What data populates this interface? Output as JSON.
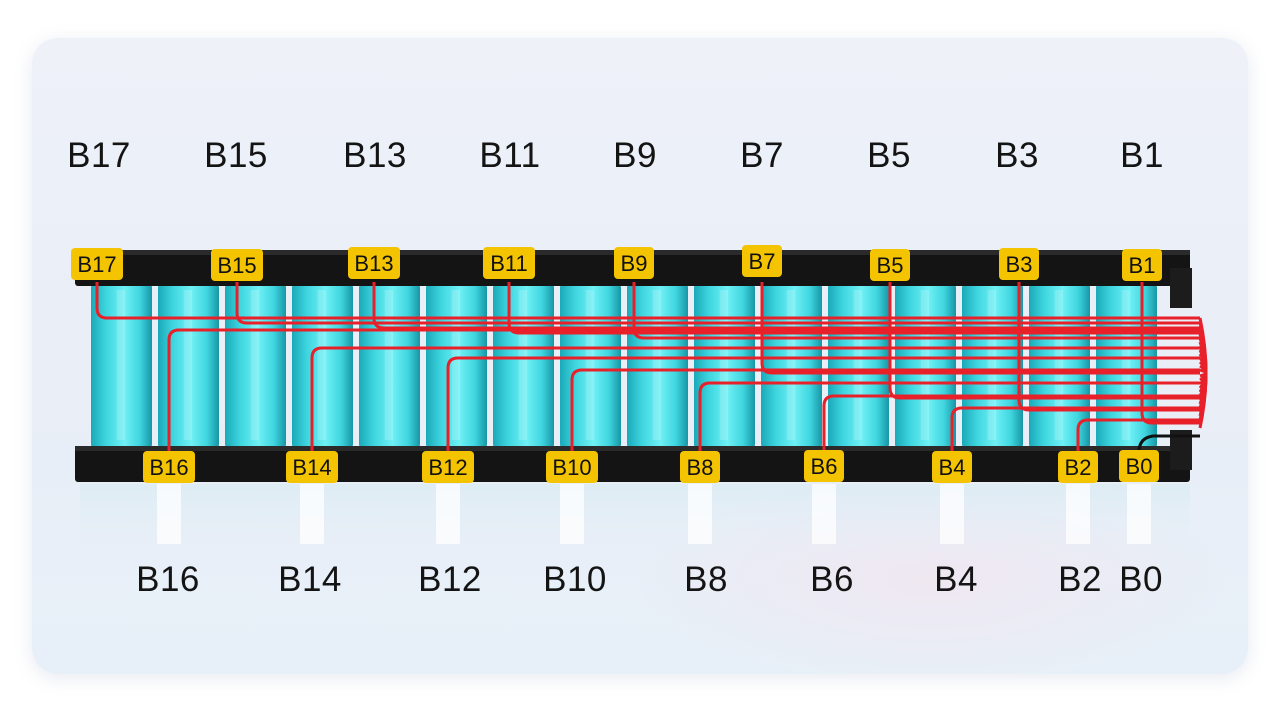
{
  "diagram": {
    "top_labels": [
      "B17",
      "B15",
      "B13",
      "B11",
      "B9",
      "B7",
      "B5",
      "B3",
      "B1"
    ],
    "bottom_labels": [
      "B16",
      "B14",
      "B12",
      "B10",
      "B8",
      "B6",
      "B4",
      "B2",
      "B0"
    ],
    "top_tags": [
      "B17",
      "B15",
      "B13",
      "B11",
      "B9",
      "B7",
      "B5",
      "B3",
      "B1"
    ],
    "bottom_tags": [
      "B16",
      "B14",
      "B12",
      "B10",
      "B8",
      "B6",
      "B4",
      "B2",
      "B0"
    ],
    "colors": {
      "cell": "#3fd6e0",
      "cell_dark": "#1aa9b8",
      "holder": "#141414",
      "tag": "#f5c400",
      "wire": "#e8202a"
    },
    "cell_count": 16
  }
}
